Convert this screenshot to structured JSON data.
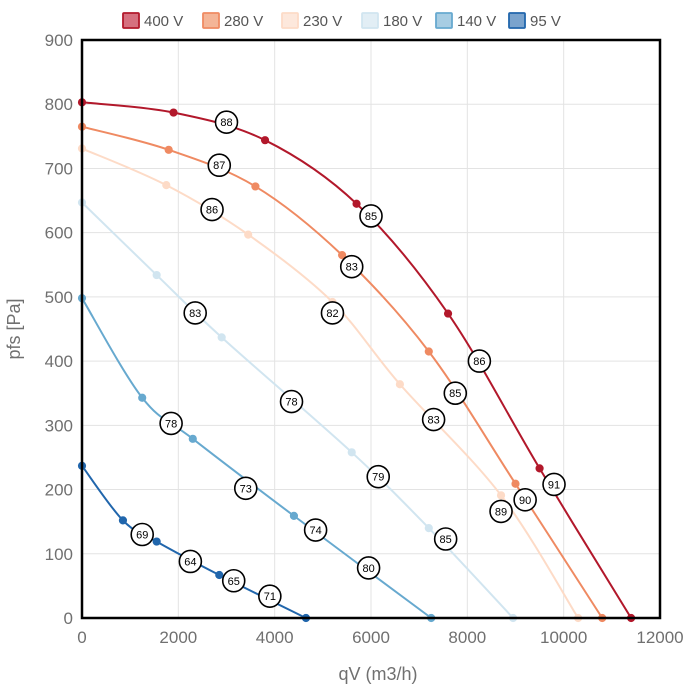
{
  "chart_data": {
    "type": "line",
    "title": "",
    "xlabel": "qV (m3/h)",
    "ylabel": "pfs [Pa]",
    "xlim": [
      0,
      12000
    ],
    "ylim": [
      0,
      900
    ],
    "x_ticks": [
      0,
      2000,
      4000,
      6000,
      8000,
      10000,
      12000
    ],
    "y_ticks": [
      0,
      100,
      200,
      300,
      400,
      500,
      600,
      700,
      800,
      900
    ],
    "grid": true,
    "legend_position": "top",
    "series": [
      {
        "name": "400 V",
        "color": "#b2182b",
        "fill": "#d6707f",
        "points": [
          [
            0,
            803
          ],
          [
            1900,
            787
          ],
          [
            3800,
            744
          ],
          [
            5700,
            645
          ],
          [
            7600,
            474
          ],
          [
            9500,
            233
          ],
          [
            11400,
            0
          ]
        ]
      },
      {
        "name": "280 V",
        "color": "#ef8a62",
        "fill": "#f4b597",
        "points": [
          [
            0,
            765
          ],
          [
            1800,
            729
          ],
          [
            3600,
            672
          ],
          [
            5400,
            565
          ],
          [
            7200,
            415
          ],
          [
            9000,
            209
          ],
          [
            10800,
            0
          ]
        ]
      },
      {
        "name": "230 V",
        "color": "#fddbc7",
        "fill": "#fde8dc",
        "points": [
          [
            0,
            731
          ],
          [
            1750,
            674
          ],
          [
            3450,
            597
          ],
          [
            5200,
            492
          ],
          [
            6600,
            364
          ],
          [
            8700,
            191
          ],
          [
            10300,
            0
          ]
        ]
      },
      {
        "name": "180 V",
        "color": "#d1e5f0",
        "fill": "#e2eef5",
        "points": [
          [
            0,
            647
          ],
          [
            1550,
            534
          ],
          [
            2900,
            437
          ],
          [
            5600,
            258
          ],
          [
            7200,
            140
          ],
          [
            8950,
            0
          ]
        ]
      },
      {
        "name": "140 V",
        "color": "#67a9cf",
        "fill": "#a7cde3",
        "points": [
          [
            0,
            498
          ],
          [
            1250,
            343
          ],
          [
            2300,
            279
          ],
          [
            4400,
            159
          ],
          [
            7250,
            0
          ]
        ]
      },
      {
        "name": "95 V",
        "color": "#2166ac",
        "fill": "#7aa3cd",
        "points": [
          [
            0,
            237
          ],
          [
            850,
            152
          ],
          [
            1550,
            119
          ],
          [
            2850,
            67
          ],
          [
            4650,
            0
          ]
        ]
      }
    ],
    "annotations": [
      {
        "label": "88",
        "x": 3000,
        "y": 772
      },
      {
        "label": "87",
        "x": 2850,
        "y": 705
      },
      {
        "label": "86",
        "x": 2700,
        "y": 636
      },
      {
        "label": "83",
        "x": 2350,
        "y": 475
      },
      {
        "label": "85",
        "x": 6000,
        "y": 626
      },
      {
        "label": "83",
        "x": 5600,
        "y": 547
      },
      {
        "label": "82",
        "x": 5200,
        "y": 475
      },
      {
        "label": "86",
        "x": 8250,
        "y": 400
      },
      {
        "label": "85",
        "x": 7750,
        "y": 350
      },
      {
        "label": "83",
        "x": 7300,
        "y": 309
      },
      {
        "label": "78",
        "x": 4350,
        "y": 337
      },
      {
        "label": "79",
        "x": 6150,
        "y": 220
      },
      {
        "label": "78",
        "x": 1850,
        "y": 303
      },
      {
        "label": "73",
        "x": 3400,
        "y": 202
      },
      {
        "label": "74",
        "x": 4850,
        "y": 137
      },
      {
        "label": "85",
        "x": 7550,
        "y": 123
      },
      {
        "label": "91",
        "x": 9800,
        "y": 208
      },
      {
        "label": "90",
        "x": 9200,
        "y": 184
      },
      {
        "label": "89",
        "x": 8700,
        "y": 166
      },
      {
        "label": "80",
        "x": 5950,
        "y": 78
      },
      {
        "label": "69",
        "x": 1250,
        "y": 130
      },
      {
        "label": "64",
        "x": 2250,
        "y": 88
      },
      {
        "label": "65",
        "x": 3150,
        "y": 58
      },
      {
        "label": "71",
        "x": 3900,
        "y": 34
      }
    ]
  }
}
